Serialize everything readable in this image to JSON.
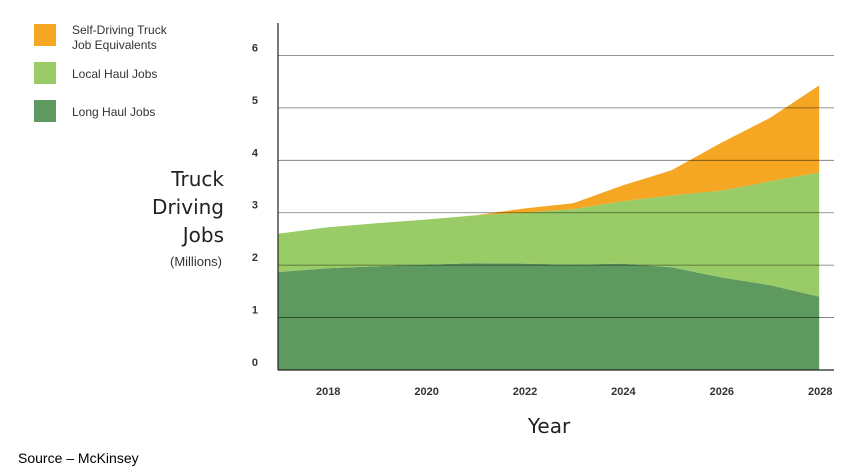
{
  "chart_data": {
    "type": "area",
    "stacked": true,
    "x": [
      2017,
      2018,
      2019,
      2020,
      2021,
      2022,
      2023,
      2024,
      2025,
      2026,
      2027,
      2028
    ],
    "series": [
      {
        "name": "Long Haul Jobs",
        "color": "#5e9a5f",
        "values": [
          1.87,
          1.94,
          1.98,
          2.01,
          2.04,
          2.03,
          2.01,
          2.03,
          1.96,
          1.77,
          1.62,
          1.4
        ]
      },
      {
        "name": "Local Haul Jobs",
        "color": "#99cc66",
        "values": [
          0.73,
          0.78,
          0.82,
          0.86,
          0.91,
          0.97,
          1.06,
          1.19,
          1.37,
          1.65,
          1.98,
          2.37
        ]
      },
      {
        "name_lines": [
          "Self-Driving Truck",
          "Job Equivalents"
        ],
        "color": "#f5a623",
        "values": [
          0,
          0,
          0,
          0,
          0,
          0.08,
          0.11,
          0.3,
          0.48,
          0.91,
          1.21,
          1.66
        ]
      }
    ],
    "legend_order": [
      2,
      1,
      0
    ],
    "legend_position": "top-left",
    "x_ticks": [
      2018,
      2020,
      2022,
      2024,
      2026,
      2028
    ],
    "y_ticks": [
      0,
      1,
      2,
      3,
      4,
      5,
      6
    ],
    "ylim": [
      0,
      6.2
    ],
    "xlim": [
      2017,
      2028.3
    ],
    "grid": true,
    "ylabel_lines": [
      "Truck",
      "Driving",
      "Jobs"
    ],
    "ylabel_unit": "(Millions)",
    "xlabel": "Year"
  },
  "source_note": "Source – McKinsey"
}
